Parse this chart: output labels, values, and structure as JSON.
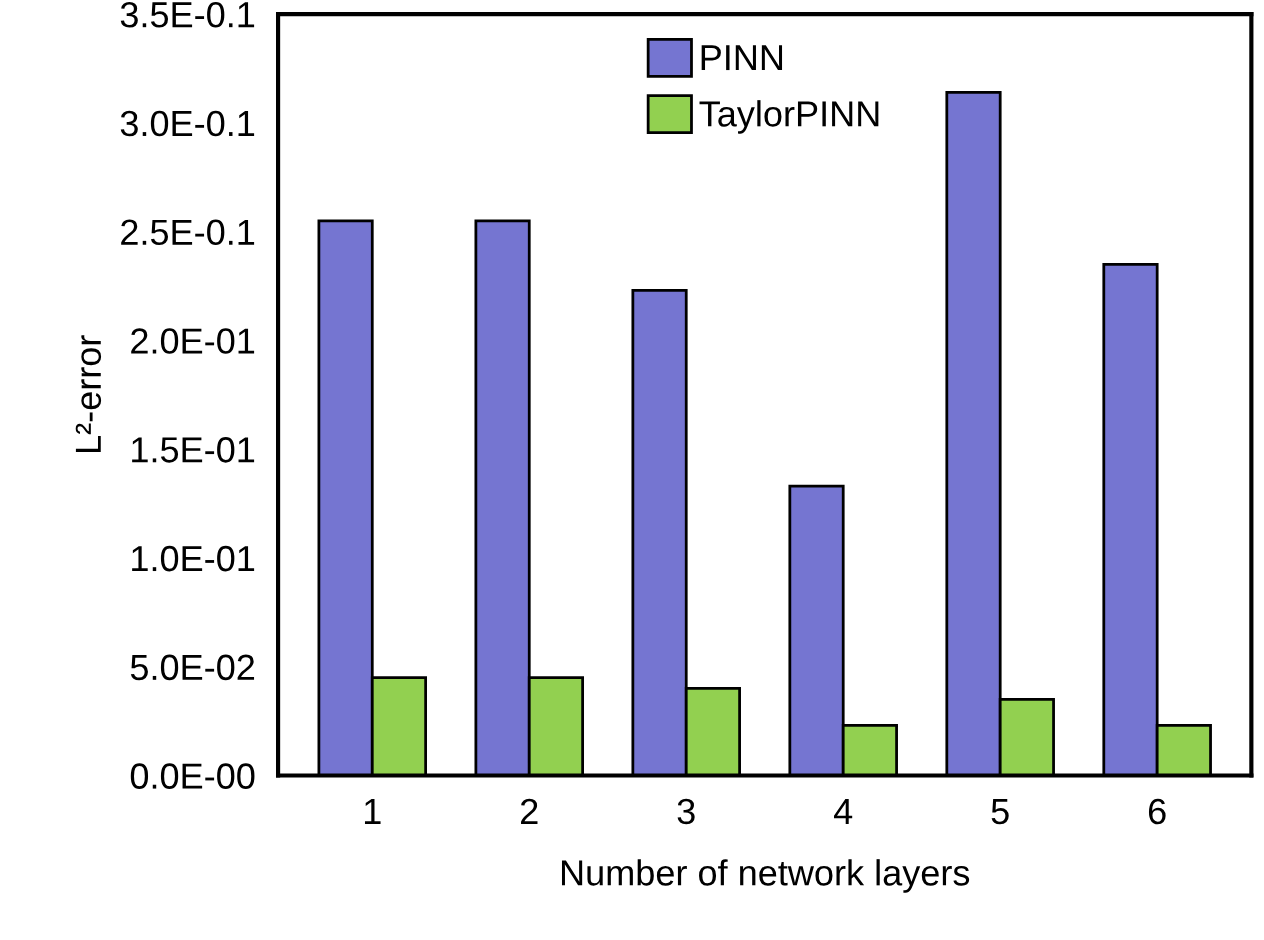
{
  "chart_data": {
    "type": "bar",
    "xlabel": "Number of network layers",
    "ylabel": "L²-error",
    "categories": [
      "1",
      "2",
      "3",
      "4",
      "5",
      "6"
    ],
    "series": [
      {
        "name": "PINN",
        "color": "#7575d1",
        "values": [
          0.255,
          0.255,
          0.223,
          0.133,
          0.314,
          0.235
        ]
      },
      {
        "name": "TaylorPINN",
        "color": "#92d050",
        "values": [
          0.045,
          0.045,
          0.04,
          0.023,
          0.035,
          0.023
        ]
      }
    ],
    "ylim": [
      0,
      0.35
    ],
    "yticks": [
      {
        "value": 0,
        "label": "0.0E-00"
      },
      {
        "value": 0.05,
        "label": "5.0E-02"
      },
      {
        "value": 0.1,
        "label": "1.0E-01"
      },
      {
        "value": 0.15,
        "label": "1.5E-01"
      },
      {
        "value": 0.2,
        "label": "2.0E-01"
      },
      {
        "value": 0.25,
        "label": "2.5E-0.1"
      },
      {
        "value": 0.3,
        "label": "3.0E-0.1"
      },
      {
        "value": 0.35,
        "label": "3.5E-0.1"
      }
    ],
    "grid": false,
    "legend": "top"
  }
}
